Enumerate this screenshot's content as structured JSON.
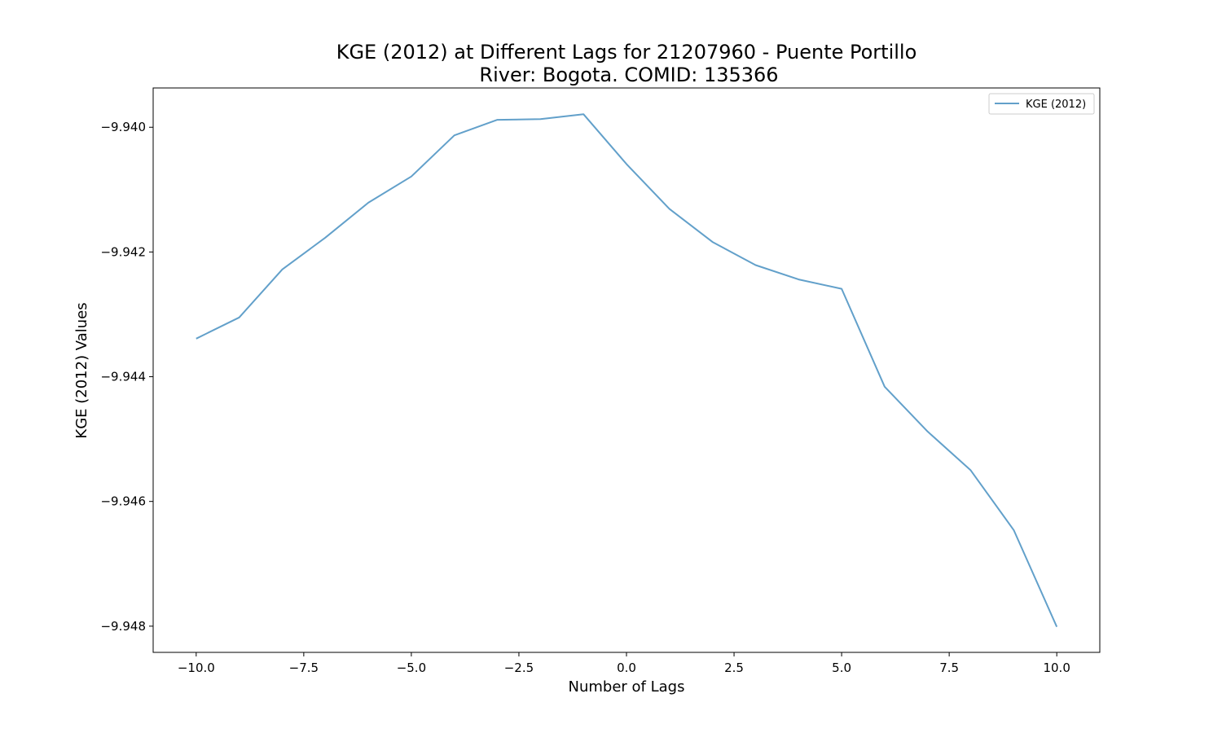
{
  "chart_data": {
    "type": "line",
    "title_line1": "KGE (2012) at Different Lags for 21207960 - Puente Portillo",
    "title_line2": "River: Bogota. COMID: 135366",
    "xlabel": "Number of Lags",
    "ylabel": "KGE (2012) Values",
    "xlim": [
      -11,
      11
    ],
    "ylim": [
      -9.94842,
      -9.93937
    ],
    "x_ticks": [
      -10.0,
      -7.5,
      -5.0,
      -2.5,
      0.0,
      2.5,
      5.0,
      7.5,
      10.0
    ],
    "x_tick_labels": [
      "−10.0",
      "−7.5",
      "−5.0",
      "−2.5",
      "0.0",
      "2.5",
      "5.0",
      "7.5",
      "10.0"
    ],
    "y_ticks": [
      -9.94,
      -9.942,
      -9.944,
      -9.946,
      -9.948
    ],
    "y_tick_labels": [
      "−9.940",
      "−9.942",
      "−9.944",
      "−9.946",
      "−9.948"
    ],
    "grid": false,
    "legend_position": "top-right",
    "series": [
      {
        "name": "KGE (2012)",
        "color": "#1f77b4",
        "x": [
          -10,
          -9,
          -8,
          -7,
          -6,
          -5,
          -4,
          -3,
          -2,
          -1,
          0,
          1,
          2,
          3,
          4,
          5,
          6,
          7,
          8,
          9,
          10
        ],
        "y": [
          -9.94339,
          -9.94305,
          -9.94228,
          -9.94177,
          -9.94121,
          -9.94079,
          -9.94013,
          -9.93988,
          -9.93987,
          -9.93979,
          -9.94059,
          -9.94131,
          -9.94184,
          -9.94221,
          -9.94244,
          -9.94259,
          -9.94416,
          -9.94488,
          -9.9455,
          -9.94646,
          -9.94801
        ]
      }
    ]
  }
}
